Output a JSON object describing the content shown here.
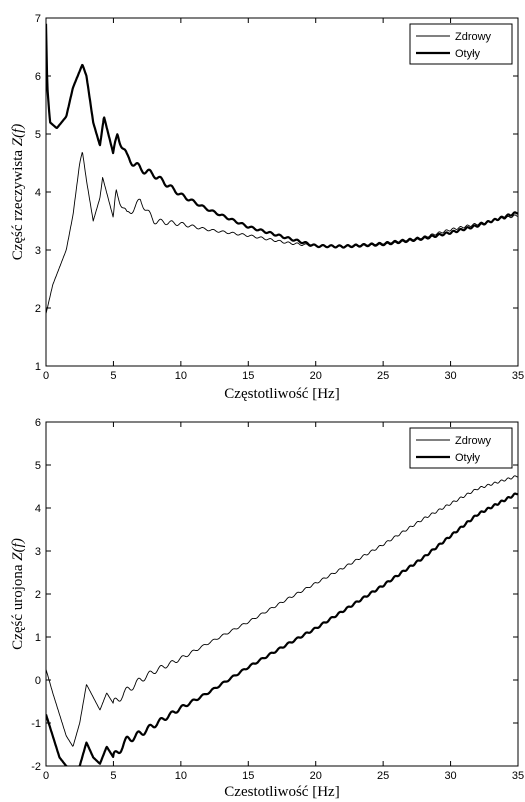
{
  "chart_data": [
    {
      "type": "line",
      "xlabel": "Częstotliwość [Hz]",
      "ylabel": "Część rzeczywista Z(f)",
      "ylabel_main": "Część rzeczywista ",
      "ylabel_italic": "Z(f)",
      "xlim": [
        0,
        35
      ],
      "ylim": [
        1,
        7
      ],
      "xticks": [
        "0",
        "5",
        "10",
        "15",
        "20",
        "25",
        "30",
        "35"
      ],
      "yticks": [
        "1",
        "2",
        "3",
        "4",
        "5",
        "6",
        "7"
      ],
      "legend_position": "top-right",
      "grid": false,
      "series": [
        {
          "name": "Zdrowy",
          "style": "thin",
          "x": [
            0,
            0.5,
            1,
            1.5,
            2,
            2.5,
            2.7,
            3,
            3.5,
            4,
            4.2,
            5,
            5.2,
            6,
            7,
            8,
            10,
            12,
            15,
            18,
            20,
            22,
            25,
            28,
            30,
            32,
            35
          ],
          "y": [
            1.9,
            2.4,
            2.7,
            3.0,
            3.6,
            4.5,
            4.7,
            4.2,
            3.5,
            3.9,
            4.25,
            3.55,
            4.0,
            3.6,
            3.85,
            3.5,
            3.45,
            3.35,
            3.25,
            3.12,
            3.07,
            3.07,
            3.12,
            3.22,
            3.35,
            3.45,
            3.6
          ]
        },
        {
          "name": "Otyły",
          "style": "thick",
          "x": [
            0,
            0.1,
            0.3,
            0.8,
            1.5,
            2,
            2.7,
            3,
            3.5,
            4,
            4.3,
            5,
            5.3,
            6,
            7,
            8,
            10,
            12,
            15,
            18,
            20,
            22,
            25,
            28,
            30,
            32,
            35
          ],
          "y": [
            6.9,
            5.8,
            5.2,
            5.1,
            5.3,
            5.8,
            6.2,
            6.0,
            5.2,
            4.8,
            5.3,
            4.65,
            5.0,
            4.6,
            4.4,
            4.3,
            3.95,
            3.7,
            3.4,
            3.2,
            3.07,
            3.06,
            3.1,
            3.2,
            3.3,
            3.42,
            3.65
          ]
        }
      ]
    },
    {
      "type": "line",
      "xlabel": "Czestotliwość [Hz]",
      "ylabel": "Część urojona Z(f)",
      "ylabel_main": "Część urojona ",
      "ylabel_italic": "Z(f)",
      "xlim": [
        0,
        35
      ],
      "ylim": [
        -2,
        6
      ],
      "xticks": [
        "0",
        "5",
        "10",
        "15",
        "20",
        "25",
        "30",
        "35"
      ],
      "yticks": [
        "-2",
        "-1",
        "0",
        "1",
        "2",
        "3",
        "4",
        "5",
        "6"
      ],
      "legend_position": "top-right",
      "grid": false,
      "series": [
        {
          "name": "Zdrowy",
          "style": "thin",
          "x": [
            0,
            0.5,
            1,
            1.5,
            2,
            2.5,
            3,
            3.5,
            4,
            4.5,
            5,
            6,
            7,
            8,
            10,
            12,
            15,
            18,
            20,
            22,
            25,
            28,
            30,
            32,
            35
          ],
          "y": [
            0.25,
            -0.3,
            -0.8,
            -1.3,
            -1.55,
            -1.0,
            -0.1,
            -0.4,
            -0.7,
            -0.3,
            -0.55,
            -0.25,
            0.0,
            0.2,
            0.5,
            0.85,
            1.35,
            1.9,
            2.25,
            2.6,
            3.15,
            3.75,
            4.1,
            4.45,
            4.75
          ]
        },
        {
          "name": "Otyły",
          "style": "thick",
          "x": [
            0,
            0.5,
            1,
            1.5,
            2,
            2.5,
            3,
            3.5,
            4,
            4.5,
            5,
            6,
            7,
            8,
            10,
            12,
            15,
            18,
            20,
            22,
            25,
            28,
            30,
            32,
            35
          ],
          "y": [
            -0.8,
            -1.3,
            -1.8,
            -2.0,
            -2.1,
            -2.0,
            -1.45,
            -1.8,
            -1.95,
            -1.55,
            -1.8,
            -1.4,
            -1.25,
            -1.05,
            -0.65,
            -0.3,
            0.3,
            0.85,
            1.2,
            1.6,
            2.2,
            2.85,
            3.35,
            3.85,
            4.35
          ]
        }
      ]
    }
  ]
}
